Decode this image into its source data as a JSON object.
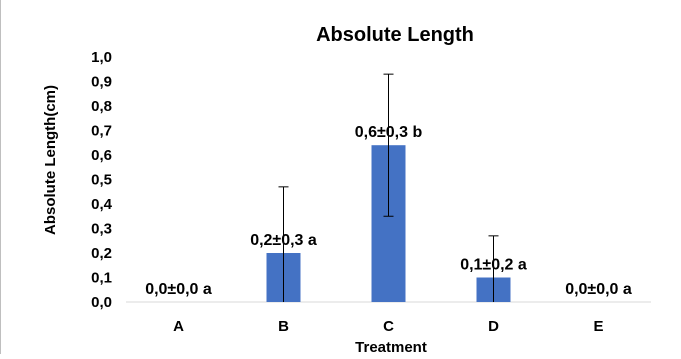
{
  "chart_data": {
    "type": "bar",
    "title": "Absolute Length",
    "xlabel": "Treatment",
    "ylabel": "Absolute Length(cm)",
    "categories": [
      "A",
      "B",
      "C",
      "D",
      "E"
    ],
    "values": [
      0.0,
      0.2,
      0.64,
      0.1,
      0.0
    ],
    "error": [
      0.0,
      0.27,
      0.29,
      0.17,
      0.0
    ],
    "data_labels": [
      "0,0±0,0 a",
      "0,2±0,3 a",
      "0,6±0,3 b",
      "0,1±0,2 a",
      "0,0±0,0 a"
    ],
    "ylim": [
      0,
      1.0
    ],
    "yticks": [
      "0,0",
      "0,1",
      "0,2",
      "0,3",
      "0,4",
      "0,5",
      "0,6",
      "0,7",
      "0,8",
      "0,9",
      "1,0"
    ],
    "grid": false,
    "legend": "none",
    "bar_color": "#4472c4"
  }
}
